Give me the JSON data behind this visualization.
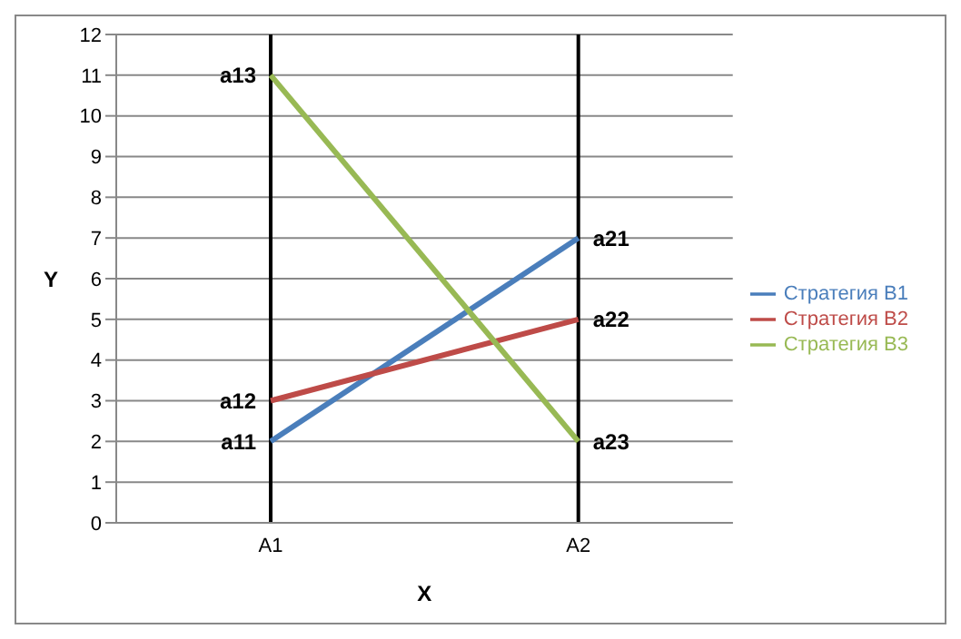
{
  "chart_data": {
    "type": "line",
    "xlabel": "X",
    "ylabel": "Y",
    "categories": [
      "A1",
      "A2"
    ],
    "series": [
      {
        "name": "Стратегия B1",
        "color": "#4a7ebb",
        "values": [
          2,
          7
        ]
      },
      {
        "name": "Стратегия B2",
        "color": "#be4b48",
        "values": [
          3,
          5
        ]
      },
      {
        "name": "Стратегия B3",
        "color": "#98b954",
        "values": [
          11,
          2
        ]
      }
    ],
    "ylim": [
      0,
      12
    ],
    "yticks": [
      0,
      1,
      2,
      3,
      4,
      5,
      6,
      7,
      8,
      9,
      10,
      11,
      12
    ],
    "grid": "y",
    "legend": "right",
    "marker": "none",
    "line_style": "solid",
    "ref_lines": [
      {
        "axis": "x",
        "value": "A1",
        "color": "#000000"
      },
      {
        "axis": "x",
        "value": "A2",
        "color": "#000000"
      }
    ],
    "annotations": [
      {
        "text": "a11",
        "x": "A1",
        "y": 2
      },
      {
        "text": "a12",
        "x": "A1",
        "y": 3
      },
      {
        "text": "a13",
        "x": "A1",
        "y": 11
      },
      {
        "text": "a21",
        "x": "A2",
        "y": 7
      },
      {
        "text": "a22",
        "x": "A2",
        "y": 5
      },
      {
        "text": "a23",
        "x": "A2",
        "y": 2
      }
    ]
  }
}
